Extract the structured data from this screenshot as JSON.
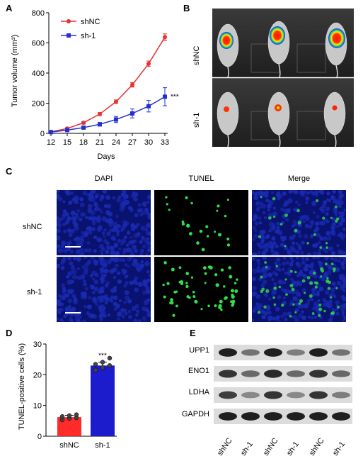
{
  "panels": {
    "A": "A",
    "B": "B",
    "C": "C",
    "D": "D",
    "E": "E"
  },
  "colors": {
    "shNC": "#e8312f",
    "sh1": "#2430d4",
    "dapi": "#1a2ab0",
    "tunel": "#2ee04a",
    "bar_shNC": "#ff2a2a",
    "bar_sh1": "#1c1ccc"
  },
  "chart_data": [
    {
      "type": "line",
      "panel": "A",
      "x": [
        12,
        15,
        18,
        21,
        24,
        27,
        30,
        33
      ],
      "xlabel": "Days",
      "ylabel": "Tumor volume (mm³)",
      "ylim": [
        0,
        800
      ],
      "yticks": [
        0,
        200,
        400,
        600,
        800
      ],
      "series": [
        {
          "name": "shNC",
          "values": [
            10,
            32,
            70,
            128,
            210,
            322,
            462,
            638
          ],
          "errors": [
            3,
            6,
            8,
            10,
            12,
            15,
            18,
            22
          ]
        },
        {
          "name": "sh-1",
          "values": [
            8,
            22,
            38,
            60,
            92,
            132,
            180,
            243
          ],
          "errors": [
            3,
            5,
            8,
            12,
            20,
            30,
            38,
            60
          ]
        }
      ],
      "annotation": "***"
    },
    {
      "type": "bar",
      "panel": "D",
      "categories": [
        "shNC",
        "sh-1"
      ],
      "values": [
        6.2,
        23.0
      ],
      "errors": [
        0.6,
        1.1
      ],
      "points": [
        [
          5.3,
          5.8,
          6.0,
          6.4,
          6.7,
          7.0
        ],
        [
          21.5,
          22.3,
          23.0,
          23.4,
          24.1,
          25.4
        ]
      ],
      "ylabel": "TUNEL-positive cells (%)",
      "ylim": [
        0,
        30
      ],
      "yticks": [
        0,
        10,
        20,
        30
      ],
      "annotation": "***"
    }
  ],
  "panel_b": {
    "row_labels": [
      "shNC",
      "sh-1"
    ]
  },
  "panel_c": {
    "columns": [
      "DAPI",
      "TUNEL",
      "Merge"
    ],
    "rows": [
      "shNC",
      "sh-1"
    ]
  },
  "panel_e": {
    "proteins": [
      "UPP1",
      "ENO1",
      "LDHA",
      "GAPDH"
    ],
    "lanes": [
      "shNC",
      "sh-1",
      "shNC",
      "sh-1",
      "shNC",
      "sh-1"
    ],
    "band_intensity": [
      [
        0.95,
        0.55,
        0.95,
        0.5,
        0.95,
        0.55
      ],
      [
        0.85,
        0.6,
        0.9,
        0.6,
        0.85,
        0.6
      ],
      [
        0.8,
        0.45,
        0.85,
        0.45,
        0.85,
        0.5
      ],
      [
        0.95,
        0.95,
        0.95,
        0.95,
        0.95,
        0.95
      ]
    ]
  }
}
